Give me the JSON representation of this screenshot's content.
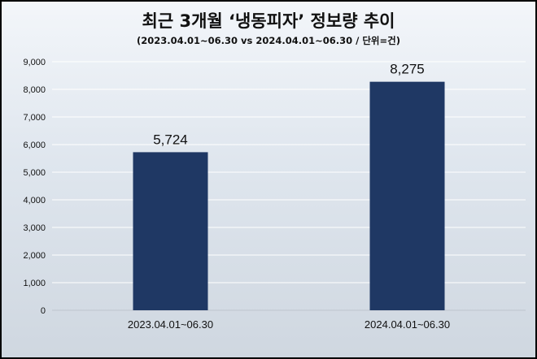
{
  "chart_data": {
    "type": "bar",
    "title": "최근 3개월 ‘냉동피자’ 정보량 추이",
    "subtitle": "(2023.04.01~06.30 vs 2024.04.01~06.30 / 단위=건)",
    "categories": [
      "2023.04.01~06.30",
      "2024.04.01~06.30"
    ],
    "values": [
      5724,
      8275
    ],
    "value_labels": [
      "5,724",
      "8,275"
    ],
    "ylim": [
      0,
      9000
    ],
    "yticks": [
      0,
      1000,
      2000,
      3000,
      4000,
      5000,
      6000,
      7000,
      8000,
      9000
    ],
    "ytick_labels": [
      "0",
      "1,000",
      "2,000",
      "3,000",
      "4,000",
      "5,000",
      "6,000",
      "7,000",
      "8,000",
      "9,000"
    ],
    "grid": true,
    "legend": "none",
    "bar_color": "#1f3864"
  }
}
